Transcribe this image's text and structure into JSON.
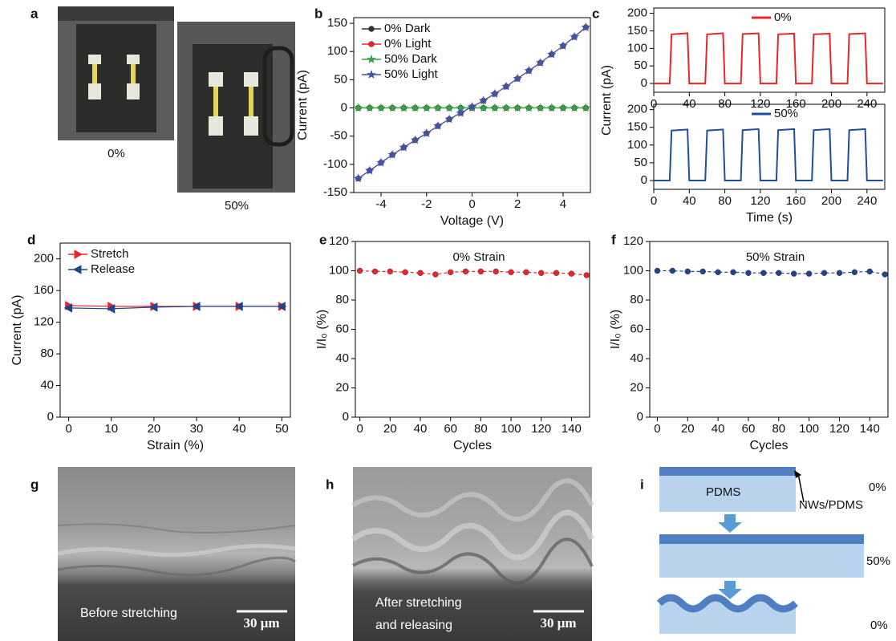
{
  "figure": {
    "a": {
      "panel": "a",
      "captions": [
        "0%",
        "50%"
      ]
    },
    "g": {
      "panel": "g",
      "caption": "Before stretching",
      "scale": "30 μm"
    },
    "h": {
      "panel": "h",
      "caption": [
        "After stretching",
        "and releasing"
      ],
      "scale": "30 μm"
    },
    "i": {
      "panel": "i",
      "layer": "PDMS",
      "pointer": "NWs/PDMS",
      "states": [
        "0%",
        "50%",
        "0%"
      ]
    }
  },
  "chart_data": [
    {
      "type": "line",
      "panel": "b",
      "xlabel": "Voltage (V)",
      "ylabel": "Current (pA)",
      "x": [
        -5,
        -4.5,
        -4,
        -3.5,
        -3,
        -2.5,
        -2,
        -1.5,
        -1,
        -0.5,
        0,
        0.5,
        1,
        1.5,
        2,
        2.5,
        3,
        3.5,
        4,
        4.5,
        5
      ],
      "xlim": [
        -5.2,
        5.2
      ],
      "xticks": [
        -4,
        -2,
        0,
        2,
        4
      ],
      "ylim": [
        -150,
        160
      ],
      "yticks": [
        -150,
        -100,
        -50,
        0,
        50,
        100,
        150
      ],
      "legend": "upper left",
      "series": [
        {
          "name": "0% Dark",
          "color": "#333333",
          "marker": "circle",
          "values": [
            0,
            0,
            0,
            0,
            0,
            0,
            0,
            0,
            0,
            0,
            0,
            0,
            0,
            0,
            0,
            0,
            0,
            0,
            0,
            0,
            0
          ]
        },
        {
          "name": "0% Light",
          "color": "#e8262a",
          "marker": "circle",
          "values": [
            -125,
            -111,
            -97,
            -83,
            -70,
            -57,
            -45,
            -32,
            -20,
            -9,
            2,
            13,
            25,
            38,
            52,
            66,
            80,
            95,
            110,
            126,
            143
          ]
        },
        {
          "name": "50% Dark",
          "color": "#3aa14a",
          "marker": "star",
          "values": [
            0,
            0,
            0,
            0,
            0,
            0,
            0,
            0,
            0,
            0,
            0,
            0,
            0,
            0,
            0,
            0,
            0,
            0,
            0,
            0,
            0
          ]
        },
        {
          "name": "50% Light",
          "color": "#3a56a8",
          "marker": "star",
          "values": [
            -125,
            -111,
            -97,
            -83,
            -70,
            -57,
            -45,
            -32,
            -20,
            -9,
            2,
            13,
            25,
            38,
            52,
            66,
            80,
            95,
            110,
            126,
            143
          ]
        }
      ]
    },
    {
      "type": "line",
      "panel": "c",
      "ylabel": "Current (pA)",
      "x": [
        0,
        18,
        20,
        38,
        40,
        58,
        60,
        78,
        80,
        98,
        100,
        118,
        120,
        138,
        140,
        158,
        160,
        178,
        180,
        198,
        200,
        218,
        220,
        238,
        240,
        258
      ],
      "xlim": [
        0,
        260
      ],
      "xticks": [
        0,
        40,
        80,
        120,
        160,
        200,
        240
      ],
      "ylim": [
        -25,
        215
      ],
      "yticks": [
        0,
        50,
        100,
        150,
        200
      ],
      "legend": "upper center",
      "series": [
        {
          "name": "0%",
          "color": "#e8262a",
          "values": [
            0,
            0,
            140,
            143,
            0,
            0,
            140,
            143,
            0,
            0,
            141,
            143,
            0,
            0,
            140,
            142,
            0,
            0,
            140,
            142,
            0,
            0,
            141,
            143,
            0,
            0
          ]
        }
      ]
    },
    {
      "type": "line",
      "xlabel": "Time (s)",
      "x": [
        0,
        18,
        20,
        38,
        40,
        58,
        60,
        78,
        80,
        98,
        100,
        118,
        120,
        138,
        140,
        158,
        160,
        178,
        180,
        198,
        200,
        218,
        220,
        238,
        240,
        258
      ],
      "xlim": [
        0,
        260
      ],
      "xticks": [
        0,
        40,
        80,
        120,
        160,
        200,
        240
      ],
      "ylim": [
        -25,
        215
      ],
      "yticks": [
        0,
        50,
        100,
        150,
        200
      ],
      "legend": "upper center",
      "series": [
        {
          "name": "50%",
          "color": "#1f4e9c",
          "values": [
            0,
            0,
            141,
            144,
            0,
            0,
            141,
            144,
            0,
            0,
            142,
            145,
            0,
            0,
            142,
            145,
            0,
            0,
            142,
            145,
            0,
            0,
            142,
            145,
            0,
            0
          ]
        }
      ]
    },
    {
      "type": "line",
      "panel": "d",
      "xlabel": "Strain (%)",
      "ylabel": "Current (pA)",
      "x": [
        0,
        10,
        20,
        30,
        40,
        50
      ],
      "xlim": [
        -2,
        52
      ],
      "xticks": [
        0,
        10,
        20,
        30,
        40,
        50
      ],
      "ylim": [
        0,
        220
      ],
      "yticks": [
        0,
        40,
        80,
        120,
        160,
        200
      ],
      "legend": "upper left",
      "series": [
        {
          "name": "Stretch",
          "color": "#e8262a",
          "marker": "triangle-right",
          "values": [
            141,
            140,
            140,
            140,
            140,
            140
          ]
        },
        {
          "name": "Release",
          "color": "#22448a",
          "marker": "triangle-left",
          "values": [
            138,
            137,
            139,
            140,
            140,
            140
          ]
        }
      ]
    },
    {
      "type": "line",
      "panel": "e",
      "annotation": "0% Strain",
      "xlabel": "Cycles",
      "ylabel": "I/I₀ (%)",
      "x": [
        0,
        10,
        20,
        30,
        40,
        50,
        60,
        70,
        80,
        90,
        100,
        110,
        120,
        130,
        140,
        150
      ],
      "xlim": [
        -3,
        152
      ],
      "xticks": [
        0,
        20,
        40,
        60,
        80,
        100,
        120,
        140
      ],
      "ylim": [
        0,
        120
      ],
      "yticks": [
        0,
        20,
        40,
        60,
        80,
        100,
        120
      ],
      "series": [
        {
          "color": "#e8262a",
          "marker": "circle",
          "linestyle": "dashed",
          "values": [
            100,
            99.5,
            99.5,
            99,
            98.5,
            97.5,
            99,
            99.5,
            99.5,
            99.5,
            99,
            99,
            98.5,
            98.5,
            98,
            97
          ]
        }
      ]
    },
    {
      "type": "line",
      "panel": "f",
      "annotation": "50% Strain",
      "xlabel": "Cycles",
      "ylabel": "I/I₀ (%)",
      "x": [
        0,
        10,
        20,
        30,
        40,
        50,
        60,
        70,
        80,
        90,
        100,
        110,
        120,
        130,
        140,
        150
      ],
      "xlim": [
        -5,
        152
      ],
      "xticks": [
        0,
        20,
        40,
        60,
        80,
        100,
        120,
        140
      ],
      "ylim": [
        0,
        120
      ],
      "yticks": [
        0,
        20,
        40,
        60,
        80,
        100,
        120
      ],
      "series": [
        {
          "color": "#22448a",
          "marker": "circle",
          "linestyle": "dashed",
          "values": [
            100,
            100,
            99.5,
            99.5,
            99,
            99,
            98.5,
            98.5,
            98.5,
            98,
            98,
            98.5,
            98.5,
            99,
            99.5,
            97.5
          ]
        }
      ]
    }
  ]
}
